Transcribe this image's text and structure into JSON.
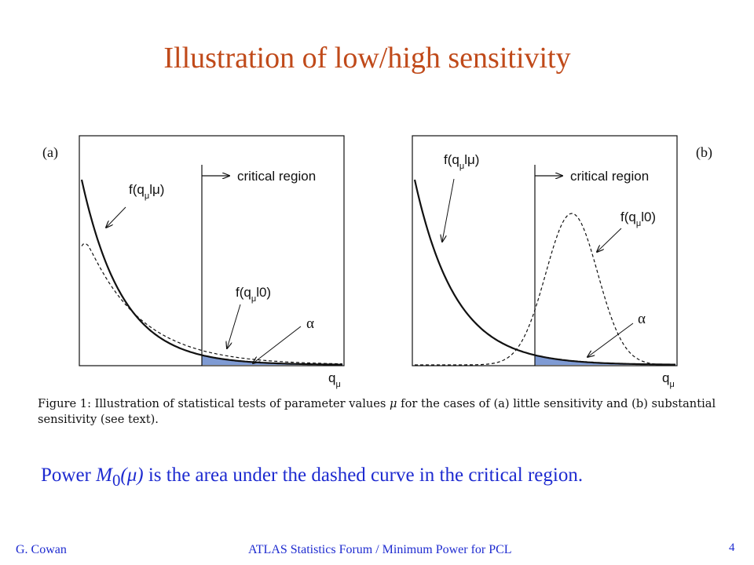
{
  "slide": {
    "title": "Illustration of low/high sensitivity",
    "power_text": {
      "prefix": "Power ",
      "symbol": "M",
      "subscript": "0",
      "argument": "(μ)",
      "suffix": " is the area under the dashed curve in the critical region."
    },
    "footer_author": "G. Cowan",
    "footer_center": "ATLAS Statistics Forum / Minimum Power for PCL",
    "page_number": "4"
  },
  "figure": {
    "caption_prefix": "Figure 1:  Illustration of statistical tests of parameter values ",
    "caption_mu": "μ",
    "caption_suffix": " for the cases of (a) little sensitivity and (b) substantial sensitivity (see text).",
    "colors": {
      "shade": "#7f9bd4",
      "curve": "#111111"
    },
    "panels": [
      {
        "tag": "(a)",
        "critical_region_label": "critical region",
        "f_mu_label": "f(q",
        "f_mu_sub": "μ",
        "f_mu_tail": "lμ)",
        "f_zero_label": "f(q",
        "f_zero_sub": "μ",
        "f_zero_tail": "l0)",
        "alpha_label": "α",
        "axis_label": "q",
        "axis_sub": "μ"
      },
      {
        "tag": "(b)",
        "critical_region_label": "critical region",
        "f_mu_label": "f(q",
        "f_mu_sub": "μ",
        "f_mu_tail": "lμ)",
        "f_zero_label": "f(q",
        "f_zero_sub": "μ",
        "f_zero_tail": "l0)",
        "alpha_label": "α",
        "axis_label": "q",
        "axis_sub": "μ"
      }
    ]
  }
}
